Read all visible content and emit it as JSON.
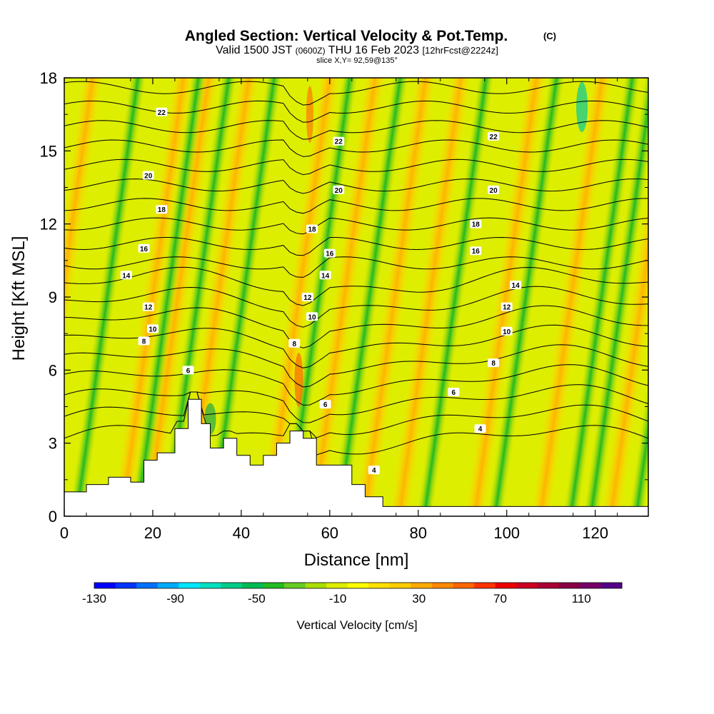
{
  "chart_data": {
    "type": "heatmap",
    "title": "Angled Section: Vertical Velocity & Pot.Temp.",
    "title_mark": "(C)",
    "subtitle": {
      "prefix": "Valid 1500 JST",
      "utc": "(0600Z)",
      "date": "THU 16 Feb 2023",
      "forecast": "[12hrFcst@2224z]"
    },
    "slice_label": "slice X,Y= 92,59@135°",
    "xlabel": "Distance [nm]",
    "ylabel": "Height [Kft MSL]",
    "xlim": [
      0,
      132
    ],
    "ylim": [
      0,
      18
    ],
    "x_ticks": [
      "0",
      "20",
      "40",
      "60",
      "80",
      "100",
      "120"
    ],
    "y_ticks": [
      "0",
      "3",
      "6",
      "9",
      "12",
      "15",
      "18"
    ],
    "colorbar": {
      "label": "Vertical Velocity [cm/s]",
      "tick_labels": [
        "-130",
        "-90",
        "-50",
        "-10",
        "30",
        "70",
        "110"
      ],
      "range": [
        -130,
        130
      ],
      "colors": [
        "#0000ff",
        "#0033ff",
        "#0070ff",
        "#00aaff",
        "#00e6ff",
        "#00e0c0",
        "#00cc88",
        "#00bb55",
        "#22bb22",
        "#66cc22",
        "#aadd00",
        "#ddee00",
        "#ffff00",
        "#ffe000",
        "#ffcc00",
        "#ffaa00",
        "#ff8800",
        "#ff6600",
        "#ff3300",
        "#ee0000",
        "#cc0022",
        "#aa0033",
        "#880044",
        "#770066",
        "#550088"
      ]
    },
    "velocity_bands_x_nm": {
      "downdraft": [
        15,
        27,
        33,
        42,
        57,
        67,
        84,
        98,
        113,
        117,
        126
      ],
      "updraft": [
        6,
        24,
        29,
        37,
        53,
        62,
        72,
        79,
        94,
        107,
        121
      ]
    },
    "isotherm_labels": [
      "22",
      "20",
      "18",
      "16",
      "14",
      "12",
      "10",
      "8",
      "6",
      "4"
    ],
    "terrain_profile": [
      {
        "x": 0,
        "y": 1.0
      },
      {
        "x": 5,
        "y": 1.3
      },
      {
        "x": 10,
        "y": 1.6
      },
      {
        "x": 15,
        "y": 1.4
      },
      {
        "x": 18,
        "y": 2.3
      },
      {
        "x": 21,
        "y": 2.6
      },
      {
        "x": 25,
        "y": 3.6
      },
      {
        "x": 28,
        "y": 4.8
      },
      {
        "x": 31,
        "y": 3.8
      },
      {
        "x": 33,
        "y": 2.8
      },
      {
        "x": 36,
        "y": 3.2
      },
      {
        "x": 39,
        "y": 2.5
      },
      {
        "x": 42,
        "y": 2.1
      },
      {
        "x": 45,
        "y": 2.5
      },
      {
        "x": 48,
        "y": 3.0
      },
      {
        "x": 51,
        "y": 3.5
      },
      {
        "x": 54,
        "y": 3.2
      },
      {
        "x": 57,
        "y": 2.1
      },
      {
        "x": 61,
        "y": 2.1
      },
      {
        "x": 65,
        "y": 1.3
      },
      {
        "x": 68,
        "y": 0.8
      },
      {
        "x": 72,
        "y": 0.4
      },
      {
        "x": 132,
        "y": 0.4
      }
    ]
  }
}
